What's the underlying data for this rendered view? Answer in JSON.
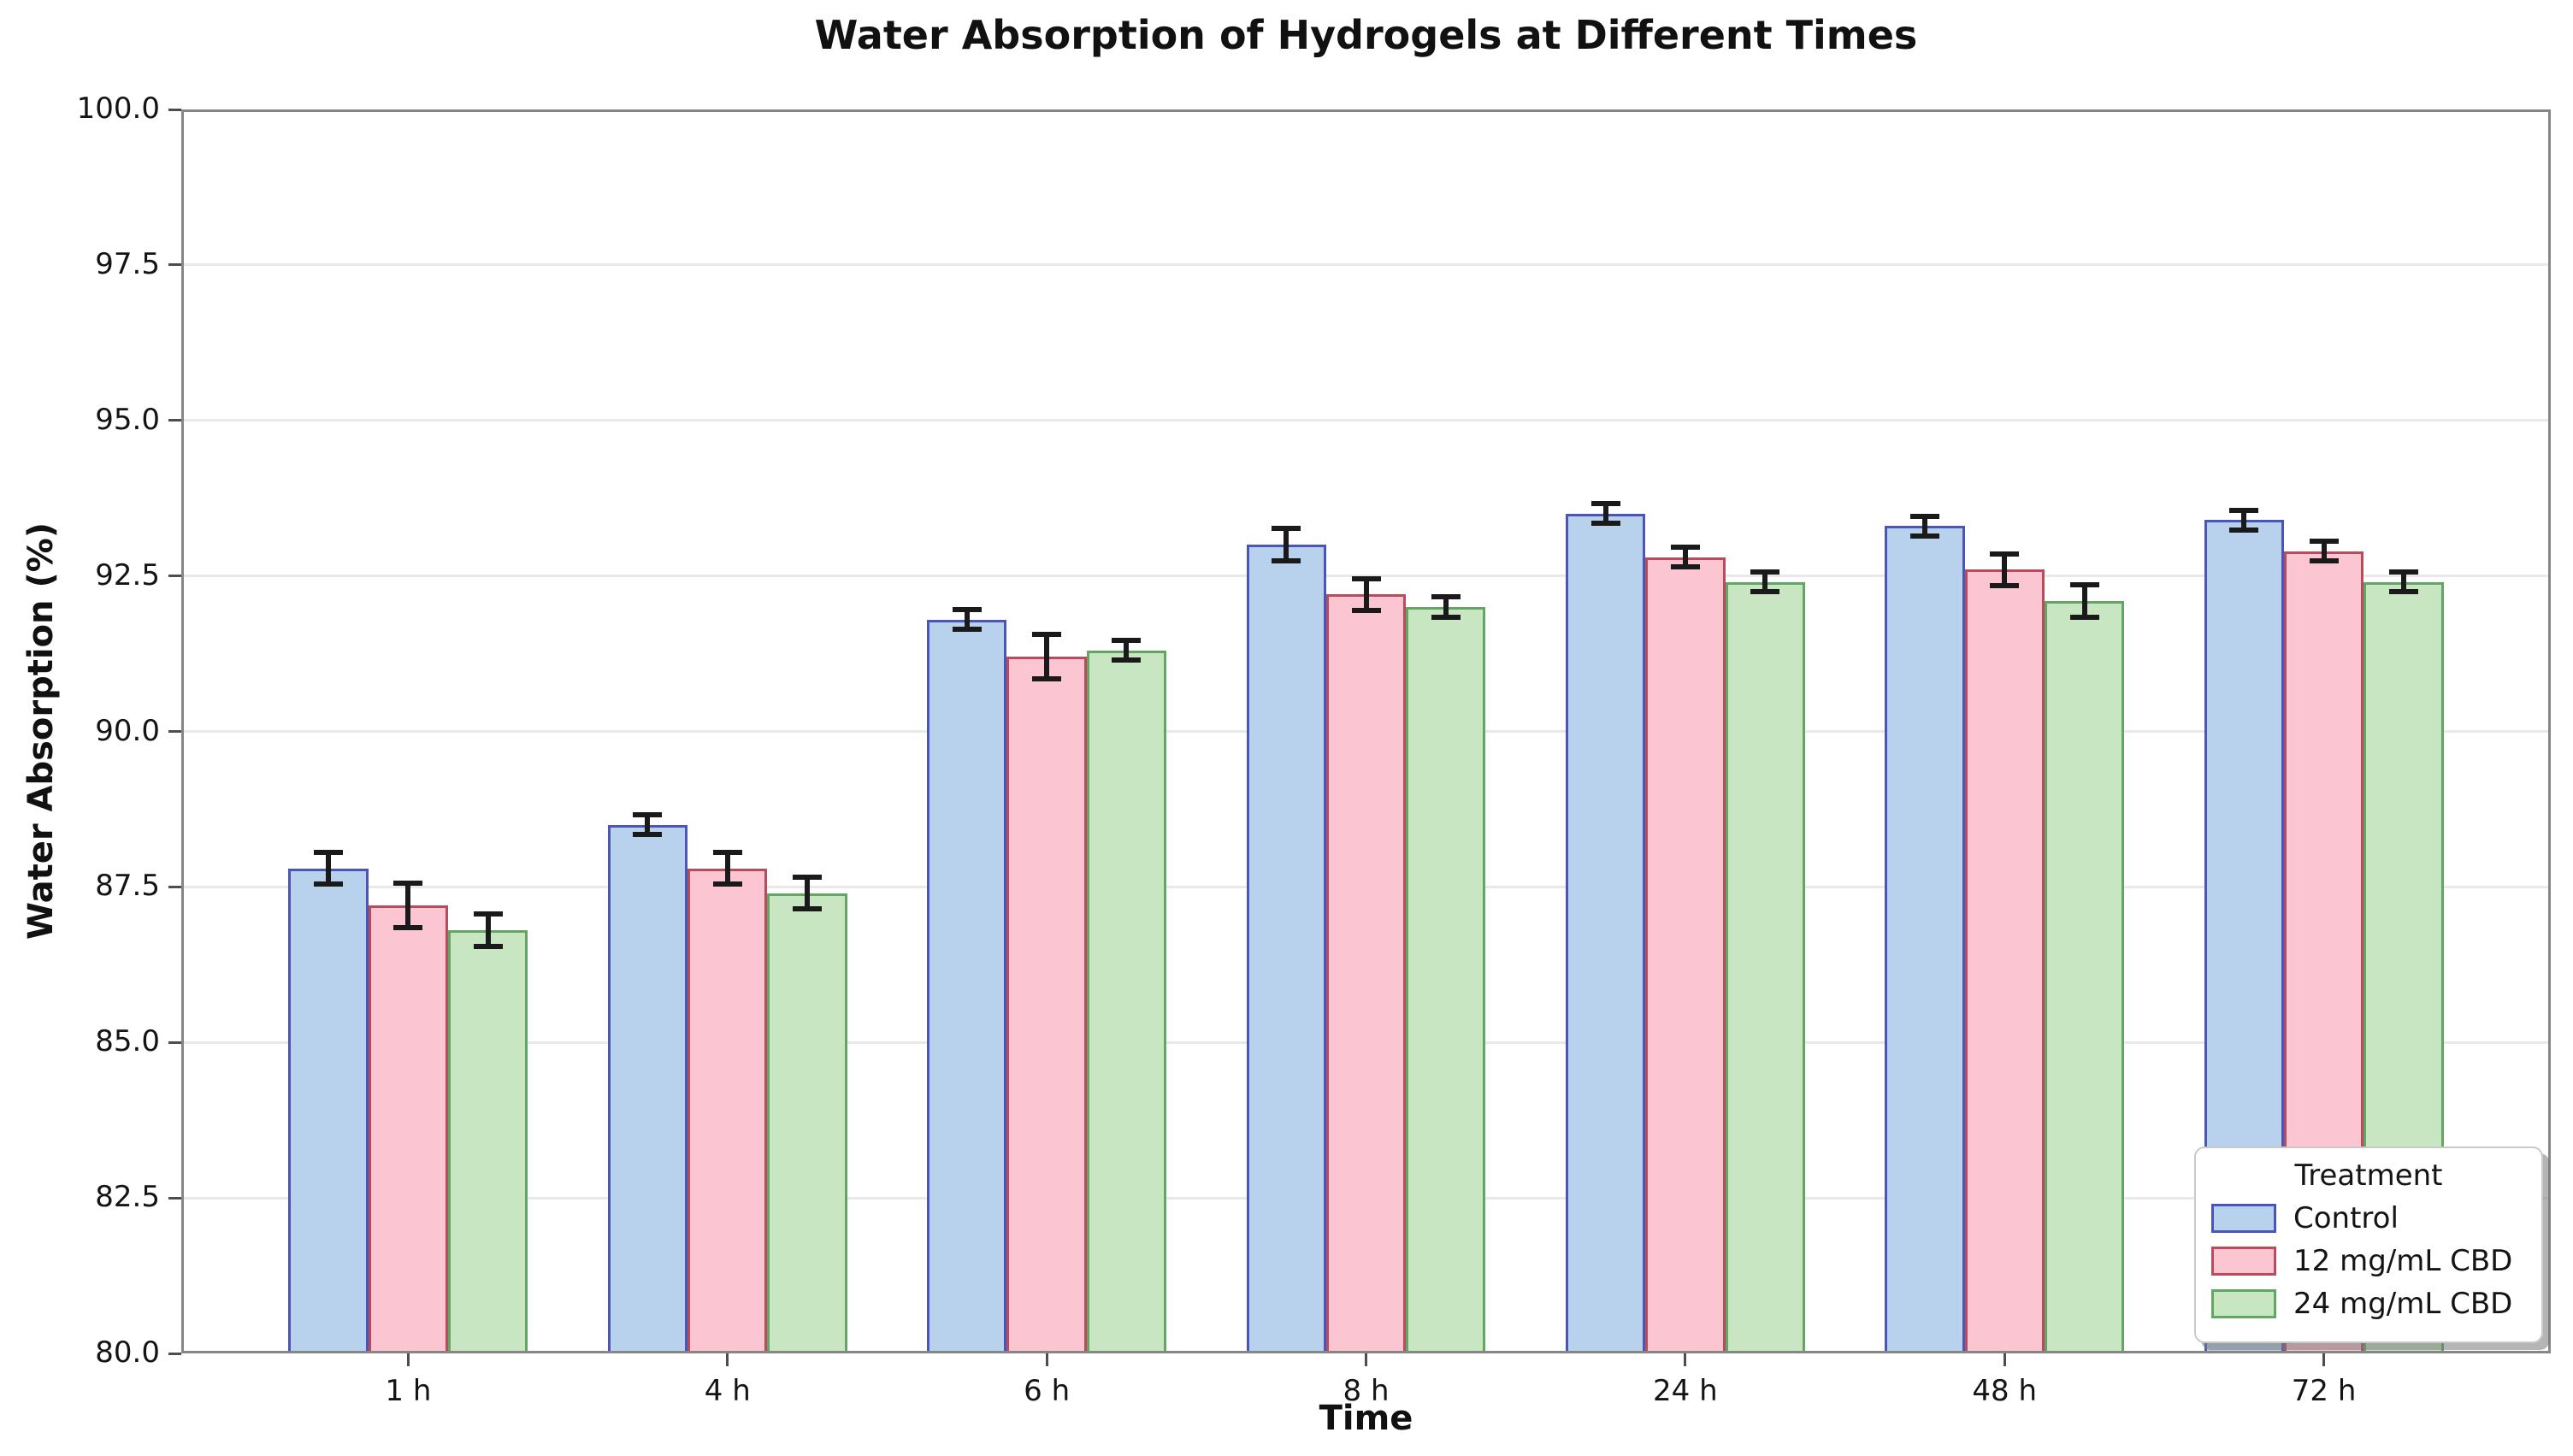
{
  "figure": {
    "title": "Water Absorption of Hydrogels at Different Times",
    "xlabel": "Time",
    "ylabel": "Water Absorption (%)"
  },
  "legend": {
    "title": "Treatment",
    "entries": [
      "Control",
      "12 mg/mL CBD",
      "24 mg/mL CBD"
    ],
    "position": "lower right"
  },
  "colors": {
    "background": "#ffffff",
    "spine": "#868686",
    "grid": "#e9e9e9",
    "error_bar": "#1a1a1a",
    "tick": "#4d4d4d",
    "text": "#141414"
  },
  "chart_data": {
    "type": "bar",
    "title": "Water Absorption of Hydrogels at Different Times",
    "xlabel": "Time",
    "ylabel": "Water Absorption (%)",
    "categories": [
      "1 h",
      "4 h",
      "6 h",
      "8 h",
      "24 h",
      "48 h",
      "72 h"
    ],
    "series": [
      {
        "name": "Control",
        "fill": "#b8d1ec",
        "edge": "#4a55b7",
        "values": [
          87.8,
          88.5,
          91.8,
          93.0,
          93.5,
          93.3,
          93.4
        ],
        "errors": [
          0.3,
          0.2,
          0.2,
          0.3,
          0.2,
          0.2,
          0.2
        ]
      },
      {
        "name": "12 mg/mL CBD",
        "fill": "#fbc6d1",
        "edge": "#b84c5c",
        "values": [
          87.2,
          87.8,
          91.2,
          92.2,
          92.8,
          92.6,
          92.9
        ],
        "errors": [
          0.4,
          0.3,
          0.4,
          0.3,
          0.2,
          0.3,
          0.2
        ]
      },
      {
        "name": "24 mg/mL CBD",
        "fill": "#c8e6c1",
        "edge": "#63a563",
        "values": [
          86.8,
          87.4,
          91.3,
          92.0,
          92.4,
          92.1,
          92.4
        ],
        "errors": [
          0.3,
          0.3,
          0.2,
          0.2,
          0.2,
          0.3,
          0.2
        ]
      }
    ],
    "ylim": [
      80.0,
      100.0
    ],
    "yticks": [
      80.0,
      82.5,
      85.0,
      87.5,
      90.0,
      92.5,
      95.0,
      97.5,
      100.0
    ],
    "ytick_labels": [
      "80.0",
      "82.5",
      "85.0",
      "87.5",
      "90.0",
      "92.5",
      "95.0",
      "97.5",
      "100.0"
    ],
    "grid": "horizontal",
    "error_bars": true,
    "legend_title": "Treatment",
    "legend_position": "lower right"
  }
}
